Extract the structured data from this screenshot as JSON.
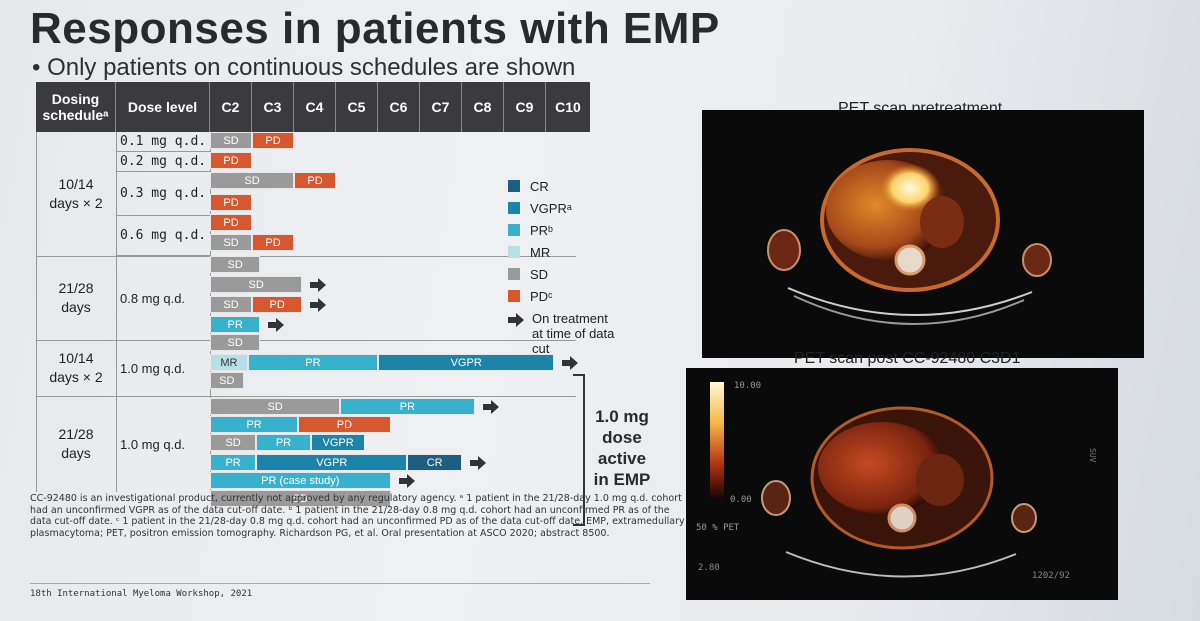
{
  "slide": {
    "title": "Responses in patients with EMP",
    "bullet": "• Only patients on continuous schedules are shown"
  },
  "table": {
    "headers": [
      "Dosing scheduleᵃ",
      "Dose level",
      "C2",
      "C3",
      "C4",
      "C5",
      "C6",
      "C7",
      "C8",
      "C9",
      "C10"
    ],
    "schedule_groups": [
      {
        "label": "10/14\ndays × 2"
      },
      {
        "label": "21/28\ndays"
      },
      {
        "label": "10/14\ndays × 2"
      },
      {
        "label": "21/28\ndays"
      }
    ],
    "dose_levels": [
      "0.1 mg q.d.",
      "0.2 mg q.d.",
      "0.3 mg q.d.",
      "0.6 mg q.d.",
      "0.8 mg q.d.",
      "1.0 mg q.d.",
      "1.0 mg q.d."
    ],
    "patients": [
      {
        "bars": [
          {
            "code": "sd",
            "label": "SD",
            "start": 0,
            "span": 1
          },
          {
            "code": "pd",
            "label": "PD",
            "start": 1,
            "span": 1
          }
        ],
        "ongoing": false
      },
      {
        "bars": [
          {
            "code": "pd",
            "label": "PD",
            "start": 0,
            "span": 1
          }
        ],
        "ongoing": false
      },
      {
        "bars": [
          {
            "code": "sd",
            "label": "SD",
            "start": 0,
            "span": 2
          },
          {
            "code": "pd",
            "label": "PD",
            "start": 2,
            "span": 1
          }
        ],
        "ongoing": false
      },
      {
        "bars": [
          {
            "code": "pd",
            "label": "PD",
            "start": 0,
            "span": 1
          }
        ],
        "ongoing": false
      },
      {
        "bars": [
          {
            "code": "pd",
            "label": "PD",
            "start": 0,
            "span": 1
          }
        ],
        "ongoing": false
      },
      {
        "bars": [
          {
            "code": "sd",
            "label": "SD",
            "start": 0,
            "span": 1
          },
          {
            "code": "pd",
            "label": "PD",
            "start": 1,
            "span": 1
          }
        ],
        "ongoing": false
      },
      {
        "bars": [
          {
            "code": "sd",
            "label": "SD",
            "start": 0,
            "span": 1.2
          }
        ],
        "ongoing": false
      },
      {
        "bars": [
          {
            "code": "sd",
            "label": "SD",
            "start": 0,
            "span": 2.2
          }
        ],
        "ongoing": true
      },
      {
        "bars": [
          {
            "code": "sd",
            "label": "SD",
            "start": 0,
            "span": 1
          },
          {
            "code": "pd",
            "label": "PD",
            "start": 1,
            "span": 1.2
          }
        ],
        "ongoing": true
      },
      {
        "bars": [
          {
            "code": "pr",
            "label": "PR",
            "start": 0,
            "span": 1.2
          }
        ],
        "ongoing": true
      },
      {
        "bars": [
          {
            "code": "sd",
            "label": "SD",
            "start": 0,
            "span": 1.2
          }
        ],
        "ongoing": false
      },
      {
        "bars": [
          {
            "code": "mr",
            "label": "MR",
            "start": 0,
            "span": 0.9
          },
          {
            "code": "pr",
            "label": "PR",
            "start": 0.9,
            "span": 3.1
          },
          {
            "code": "vg",
            "label": "VGPR",
            "start": 4,
            "span": 4.2
          }
        ],
        "ongoing": true
      },
      {
        "bars": [
          {
            "code": "sd",
            "label": "SD",
            "start": 0,
            "span": 0.8
          }
        ],
        "ongoing": false
      },
      {
        "bars": [
          {
            "code": "sd",
            "label": "SD",
            "start": 0,
            "span": 3.1
          },
          {
            "code": "pr",
            "label": "PR",
            "start": 3.1,
            "span": 3.2
          }
        ],
        "ongoing": true
      },
      {
        "bars": [
          {
            "code": "pr",
            "label": "PR",
            "start": 0,
            "span": 2.1
          },
          {
            "code": "pd",
            "label": "PD",
            "start": 2.1,
            "span": 2.2
          }
        ],
        "ongoing": false
      },
      {
        "bars": [
          {
            "code": "sd",
            "label": "SD",
            "start": 0,
            "span": 1.1
          },
          {
            "code": "pr",
            "label": "PR",
            "start": 1.1,
            "span": 1.3
          },
          {
            "code": "vg",
            "label": "VGPR",
            "start": 2.4,
            "span": 1.3
          }
        ],
        "ongoing": false
      },
      {
        "bars": [
          {
            "code": "pr",
            "label": "PR",
            "start": 0,
            "span": 1.1
          },
          {
            "code": "vg",
            "label": "VGPR",
            "start": 1.1,
            "span": 3.6
          },
          {
            "code": "cr",
            "label": "CR",
            "start": 4.7,
            "span": 1.3
          }
        ],
        "ongoing": true
      },
      {
        "bars": [
          {
            "code": "pr",
            "label": "PR (case study)",
            "start": 0,
            "span": 4.3
          }
        ],
        "ongoing": true
      },
      {
        "bars": [
          {
            "code": "sd",
            "label": "SD",
            "start": 0,
            "span": 4.3
          }
        ],
        "ongoing": false
      }
    ]
  },
  "legend": {
    "items": [
      {
        "code": "cr",
        "label": "CR"
      },
      {
        "code": "vg",
        "label": "VGPRᵃ"
      },
      {
        "code": "pr",
        "label": "PRᵇ"
      },
      {
        "code": "mr",
        "label": "MR"
      },
      {
        "code": "sd",
        "label": "SD"
      },
      {
        "code": "pd",
        "label": "PDᶜ"
      }
    ],
    "ongoing_label": "On treatment at time of data cut"
  },
  "colors": {
    "cr": "#1c5f80",
    "vg": "#1b84a8",
    "pr": "#38b2cc",
    "mr": "#b7e0e6",
    "sd": "#9a9a9a",
    "pd": "#d7572f"
  },
  "callout": "1.0 mg dose active in EMP",
  "footnotes": {
    "text": "CC-92480 is an investigational product, currently not approved by any regulatory agency. ᵃ 1 patient in the 21/28-day 1.0 mg q.d. cohort had an unconfirmed VGPR as of the data cut-off date. ᵇ 1 patient in the 21/28-day 0.8 mg q.d. cohort had an unconfirmed PR as of the data cut-off date. ᶜ 1 patient in the 21/28-day 0.8 mg q.d. cohort had an unconfirmed PD as of the data cut-off date. EMP, extramedullary plasmacytoma; PET, positron emission tomography. Richardson PG, et al. Oral presentation at ASCO 2020; abstract 8500.",
    "conference": "18th International Myeloma Workshop, 2021"
  },
  "pet": {
    "pre_label": "PET scan pretreatment",
    "post_label": "PET scan post CC-92480 C3D1",
    "scale_max": "10.00",
    "scale_min": "0.00",
    "scale_unit": "SUV",
    "pet_pct": "50 % PET",
    "bottom_left": "2.80",
    "bottom_right": "1202/92"
  }
}
